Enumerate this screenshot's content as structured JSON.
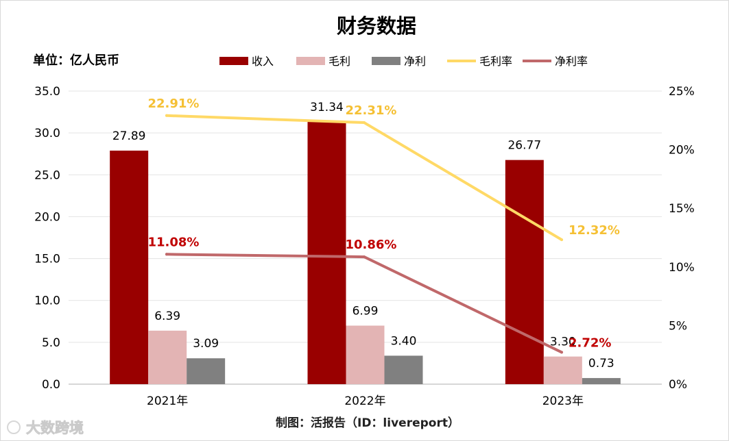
{
  "chart_data": {
    "type": "bar",
    "title": "财务数据",
    "unit_label": "单位：亿人民币",
    "source_label": "制图：活报告（ID：livereport）",
    "watermark_text": "大数跨境",
    "categories": [
      "2021年",
      "2022年",
      "2023年"
    ],
    "left_axis": {
      "min": 0,
      "max": 35,
      "ticks": [
        "0.0",
        "5.0",
        "10.0",
        "15.0",
        "20.0",
        "25.0",
        "30.0",
        "35.0"
      ]
    },
    "right_axis": {
      "min": 0,
      "max": 25,
      "ticks": [
        "0%",
        "5%",
        "10%",
        "15%",
        "20%",
        "25%"
      ]
    },
    "grid": true,
    "legend_position": "top",
    "bar_series": [
      {
        "name": "收入",
        "color": "#990000",
        "values": [
          27.89,
          31.34,
          26.77
        ],
        "labels": [
          "27.89",
          "31.34",
          "26.77"
        ]
      },
      {
        "name": "毛利",
        "color": "#e3b4b4",
        "values": [
          6.39,
          6.99,
          3.3
        ],
        "labels": [
          "6.39",
          "6.99",
          "3.30"
        ]
      },
      {
        "name": "净利",
        "color": "#808080",
        "values": [
          3.09,
          3.4,
          0.73
        ],
        "labels": [
          "3.09",
          "3.40",
          "0.73"
        ]
      }
    ],
    "line_series": [
      {
        "name": "毛利率",
        "color": "#ffd966",
        "label_color": "#f5c034",
        "values": [
          22.91,
          22.31,
          12.32
        ],
        "labels": [
          "22.91%",
          "22.31%",
          "12.32%"
        ]
      },
      {
        "name": "净利率",
        "color": "#c0686a",
        "label_color": "#c00000",
        "values": [
          11.08,
          10.86,
          2.72
        ],
        "labels": [
          "11.08%",
          "10.86%",
          "2.72%"
        ]
      }
    ]
  }
}
